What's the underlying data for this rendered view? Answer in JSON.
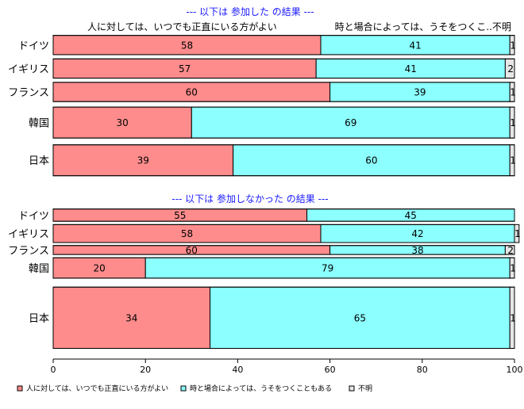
{
  "chart_data": {
    "type": "bar",
    "orientation": "horizontal",
    "stacked": true,
    "normalized_to": 100,
    "xlim": [
      0,
      100
    ],
    "x_ticks": [
      0,
      20,
      40,
      60,
      80,
      100
    ],
    "grid": false,
    "legend_position": "bottom",
    "series": [
      {
        "name": "人に対しては、いつでも正直にいる方がよい",
        "color": "#ff8c8c"
      },
      {
        "name": "時と場合によっては、うそをつくこともある",
        "color": "#8cffff"
      },
      {
        "name": "不明",
        "color": "#e6e6e6"
      }
    ],
    "column_headers": {
      "left": "人に対しては、いつでも正直にいる方がよい",
      "right": "時と場合によっては、うそをつくこ..不明"
    },
    "panels": [
      {
        "title": "--- 以下は 参加した の結果 ---",
        "categories": [
          "ドイツ",
          "イギリス",
          "フランス",
          "韓国",
          "日本"
        ],
        "values": [
          [
            58,
            41,
            1
          ],
          [
            57,
            41,
            2
          ],
          [
            60,
            39,
            1
          ],
          [
            30,
            69,
            1
          ],
          [
            39,
            60,
            1
          ]
        ],
        "weights": [
          0.89,
          0.89,
          0.89,
          1.43,
          1.43
        ]
      },
      {
        "title": "--- 以下は 参加しなかった の結果 ---",
        "categories": [
          "ドイツ",
          "イギリス",
          "フランス",
          "韓国",
          "日本"
        ],
        "values": [
          [
            55,
            45,
            0
          ],
          [
            58,
            42,
            1
          ],
          [
            60,
            38,
            2
          ],
          [
            20,
            79,
            1
          ],
          [
            34,
            65,
            1
          ]
        ],
        "weights": [
          0.6,
          0.88,
          0.44,
          1.0,
          3.0
        ]
      }
    ]
  }
}
